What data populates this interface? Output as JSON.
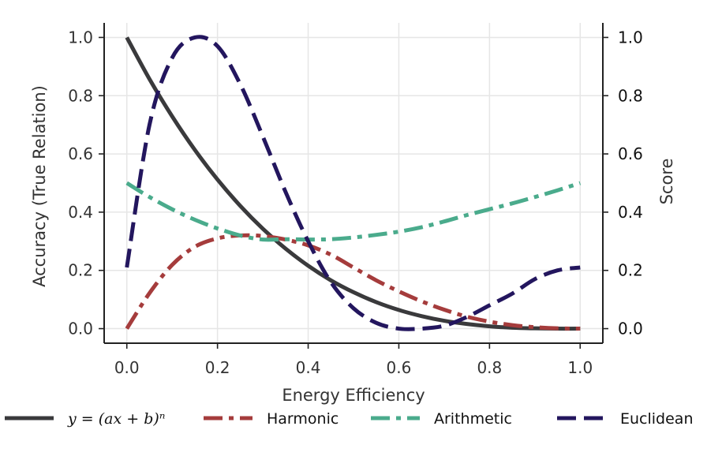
{
  "chart_data": {
    "type": "line",
    "title": "",
    "xlabel": "Energy Efficiency",
    "ylabel_left": "Accuracy (True Relation)",
    "ylabel_right": "Score",
    "xlim": [
      -0.05,
      1.05
    ],
    "ylim_left": [
      -0.05,
      1.05
    ],
    "ylim_right": [
      -0.05,
      1.05
    ],
    "xticks": [
      "0.0",
      "0.2",
      "0.4",
      "0.6",
      "0.8",
      "1.0"
    ],
    "yticks_left": [
      "0.0",
      "0.2",
      "0.4",
      "0.6",
      "0.8",
      "1.0"
    ],
    "yticks_right": [
      "0.0",
      "0.2",
      "0.4",
      "0.6",
      "0.8",
      "1.0"
    ],
    "grid": true,
    "legend_position": "bottom",
    "x": [
      0.0,
      0.05,
      0.1,
      0.15,
      0.2,
      0.25,
      0.3,
      0.35,
      0.4,
      0.45,
      0.5,
      0.55,
      0.6,
      0.65,
      0.7,
      0.75,
      0.8,
      0.85,
      0.9,
      0.95,
      1.0
    ],
    "series": [
      {
        "name": "y = (ax + b)^n",
        "legend_label": "y = (ax + b)ⁿ",
        "axis": "left",
        "color": "#3a3a3c",
        "style": "solid",
        "values": [
          1.0,
          0.857,
          0.729,
          0.614,
          0.512,
          0.422,
          0.343,
          0.275,
          0.216,
          0.166,
          0.125,
          0.091,
          0.064,
          0.043,
          0.027,
          0.016,
          0.008,
          0.003,
          0.001,
          0.0,
          0.0
        ]
      },
      {
        "name": "Harmonic",
        "legend_label": "Harmonic",
        "axis": "left",
        "color": "#a53c3c",
        "style": "dashdot",
        "values": [
          0.0,
          0.122,
          0.219,
          0.281,
          0.31,
          0.32,
          0.318,
          0.306,
          0.286,
          0.254,
          0.21,
          0.166,
          0.128,
          0.094,
          0.065,
          0.041,
          0.024,
          0.012,
          0.005,
          0.001,
          0.0
        ]
      },
      {
        "name": "Arithmetic",
        "legend_label": "Arithmetic",
        "axis": "left",
        "color": "#4aab8c",
        "style": "dashdot",
        "values": [
          0.5,
          0.452,
          0.41,
          0.374,
          0.344,
          0.32,
          0.306,
          0.307,
          0.306,
          0.307,
          0.313,
          0.322,
          0.333,
          0.348,
          0.368,
          0.39,
          0.41,
          0.43,
          0.452,
          0.475,
          0.5
        ]
      },
      {
        "name": "Euclidean",
        "legend_label": "Euclidean",
        "axis": "right",
        "color": "#23165e",
        "style": "dashed",
        "values": [
          0.21,
          0.7,
          0.93,
          1.0,
          0.97,
          0.84,
          0.66,
          0.47,
          0.3,
          0.16,
          0.07,
          0.02,
          0.0,
          0.0,
          0.01,
          0.04,
          0.08,
          0.12,
          0.17,
          0.2,
          0.21
        ]
      }
    ]
  }
}
